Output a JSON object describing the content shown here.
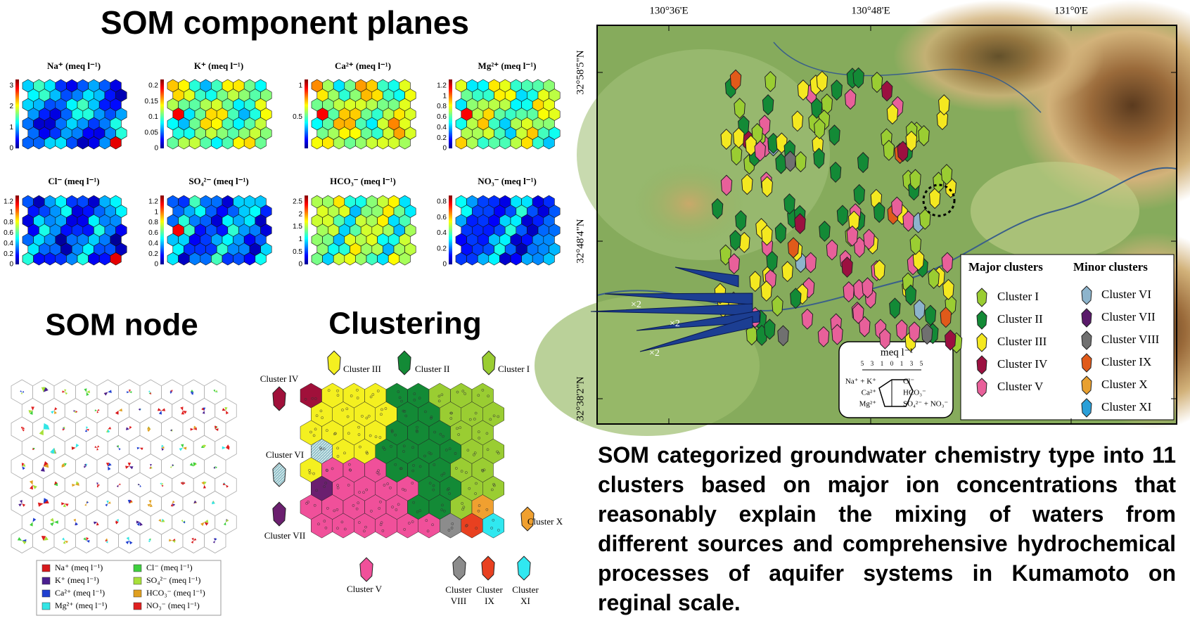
{
  "left": {
    "title": "SOM component planes",
    "planes": [
      {
        "title": "Na⁺ (meq l⁻¹)",
        "ticks": [
          0,
          1,
          2,
          3
        ]
      },
      {
        "title": "K⁺ (meq l⁻¹)",
        "ticks": [
          0,
          0.05,
          0.1,
          0.15,
          0.2
        ]
      },
      {
        "title": "Ca²⁺ (meq l⁻¹)",
        "ticks": [
          0.5,
          1
        ]
      },
      {
        "title": "Mg²⁺ (meq l⁻¹)",
        "ticks": [
          0,
          0.2,
          0.4,
          0.6,
          0.8,
          1,
          1.2
        ]
      },
      {
        "title": "Cl⁻ (meq l⁻¹)",
        "ticks": [
          0,
          0.2,
          0.4,
          0.6,
          0.8,
          1,
          1.2
        ]
      },
      {
        "title": "SO₄²⁻ (meq l⁻¹)",
        "ticks": [
          0,
          0.2,
          0.4,
          0.6,
          0.8,
          1,
          1.2
        ]
      },
      {
        "title": "HCO₃⁻ (meq l⁻¹)",
        "ticks": [
          0,
          0.5,
          1,
          1.5,
          2,
          2.5
        ]
      },
      {
        "title": "NO₃⁻ (meq l⁻¹)",
        "ticks": [
          0,
          0.2,
          0.4,
          0.6,
          0.8
        ]
      }
    ]
  },
  "node": {
    "title": "SOM node",
    "legend": [
      "Na⁺ (meq l⁻¹)",
      "K⁺ (meq l⁻¹)",
      "Ca²⁺ (meq l⁻¹)",
      "Mg²⁺ (meq l⁻¹)",
      "Cl⁻ (meq l⁻¹)",
      "SO₄²⁻ (meq l⁻¹)",
      "HCO₃⁻ (meq l⁻¹)",
      "NO₃⁻ (meq l⁻¹)"
    ]
  },
  "clustering": {
    "title": "Clustering",
    "labels": [
      "Cluster IV",
      "Cluster III",
      "Cluster II",
      "Cluster I",
      "Cluster VI",
      "Cluster VII",
      "Cluster V",
      "Cluster X",
      "Cluster VIII",
      "Cluster IX",
      "Cluster XI"
    ]
  },
  "map": {
    "lon_labels": [
      "130°36'E",
      "130°48'E",
      "131°0'E"
    ],
    "lat_labels": [
      "32°58'5\"N",
      "32°48'4\"N",
      "32°38'2\"N"
    ],
    "multipliers": [
      "×2",
      "×2",
      "×2"
    ],
    "legend": {
      "major_title": "Major clusters",
      "minor_title": "Minor clusters",
      "major": [
        "Cluster I",
        "Cluster II",
        "Cluster III",
        "Cluster IV",
        "Cluster V"
      ],
      "minor": [
        "Cluster VI",
        "Cluster VII",
        "Cluster VIII",
        "Cluster IX",
        "Cluster X",
        "Cluster XI"
      ]
    },
    "inset": {
      "unit": "meq l⁻¹",
      "scale": [
        5,
        3,
        1,
        0,
        1,
        3,
        5
      ],
      "left": [
        "Na⁺ + K⁺",
        "Ca²⁺",
        "Mg²⁺"
      ],
      "right": [
        "Cl⁻",
        "HCO₃⁻",
        "SO₄²⁻ + NO₃⁻"
      ]
    }
  },
  "summary": "SOM categorized groundwater chemistry type into 11 clusters based on major ion concentrations that reasonably explain the mixing of waters from different sources and comprehensive hydrochemical processes of aquifer systems in Kumamoto on reginal scale."
}
